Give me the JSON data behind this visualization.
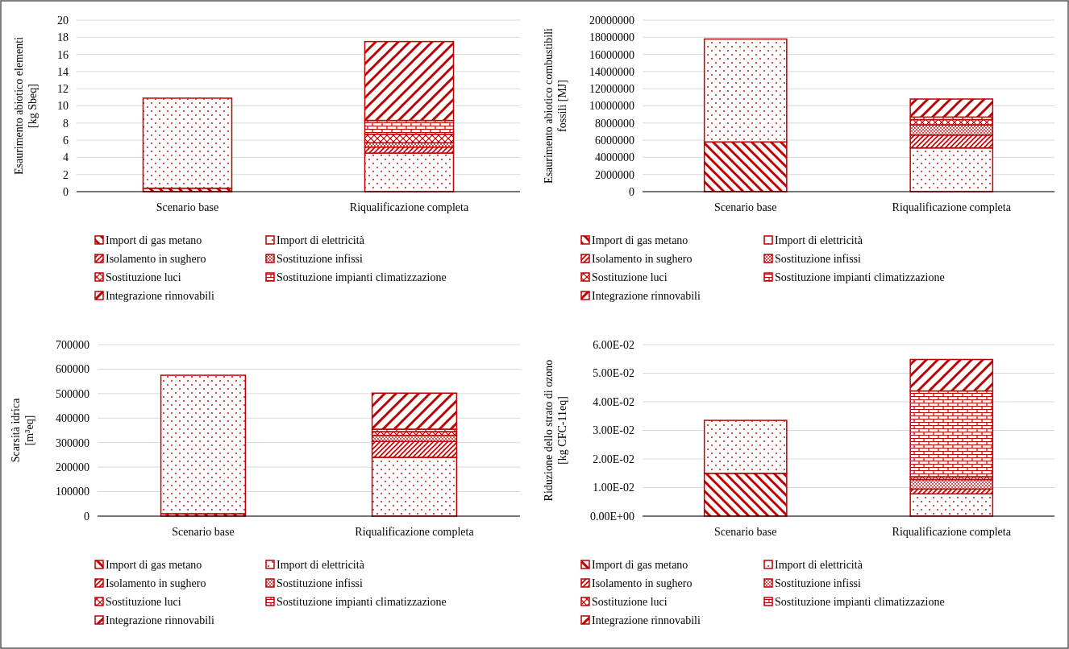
{
  "chart_data": [
    {
      "type": "bar",
      "stacked": true,
      "ylabel": "Esaurimento abiotico elementi\n[kg Sbeq]",
      "categories": [
        "Scenario base",
        "Riqualificazione completa"
      ],
      "ylim": [
        0,
        20
      ],
      "yticks": [
        0,
        2,
        4,
        6,
        8,
        10,
        12,
        14,
        16,
        18,
        20
      ],
      "grid": "y",
      "legend": "bottom",
      "series": [
        {
          "name": "Import di gas metano",
          "color": "#c00000",
          "values": [
            0.4,
            0
          ]
        },
        {
          "name": "Import di elettricità",
          "color": "#c00000",
          "values": [
            10.5,
            4.5
          ]
        },
        {
          "name": "Isolamento in sughero",
          "color": "#c00000",
          "values": [
            0,
            0.7
          ]
        },
        {
          "name": "Sostituzione infissi",
          "color": "#c00000",
          "values": [
            0,
            0.5
          ]
        },
        {
          "name": "Sostituzione luci",
          "color": "#c00000",
          "values": [
            0,
            1.0
          ]
        },
        {
          "name": "Sostituzione impianti climatizzazione",
          "color": "#c00000",
          "values": [
            0,
            1.6
          ]
        },
        {
          "name": "Integrazione rinnovabili",
          "color": "#c00000",
          "values": [
            0,
            9.2
          ]
        }
      ]
    },
    {
      "type": "bar",
      "stacked": true,
      "ylabel": "Esaurimento abiotico combustibili\nfossili [MJ]",
      "categories": [
        "Scenario base",
        "Riqualificazione completa"
      ],
      "ylim": [
        0,
        20000000
      ],
      "yticks": [
        0,
        2000000,
        4000000,
        6000000,
        8000000,
        10000000,
        12000000,
        14000000,
        16000000,
        18000000,
        20000000
      ],
      "grid": "y",
      "legend": "bottom",
      "series": [
        {
          "name": "Import di gas metano",
          "color": "#c00000",
          "values": [
            5800000,
            0
          ]
        },
        {
          "name": "Import di elettricità",
          "color": "#c00000",
          "values": [
            12000000,
            5100000
          ]
        },
        {
          "name": "Isolamento in sughero",
          "color": "#c00000",
          "values": [
            0,
            1500000
          ]
        },
        {
          "name": "Sostituzione infissi",
          "color": "#c00000",
          "values": [
            0,
            1200000
          ]
        },
        {
          "name": "Sostituzione luci",
          "color": "#c00000",
          "values": [
            0,
            600000
          ]
        },
        {
          "name": "Sostituzione impianti climatizzazione",
          "color": "#c00000",
          "values": [
            0,
            300000
          ]
        },
        {
          "name": "Integrazione rinnovabili",
          "color": "#c00000",
          "values": [
            0,
            2100000
          ]
        }
      ]
    },
    {
      "type": "bar",
      "stacked": true,
      "ylabel": "Scarsità idrica\n[m³eq]",
      "categories": [
        "Scenario base",
        "Riqualificazione completa"
      ],
      "ylim": [
        0,
        700000
      ],
      "yticks": [
        0,
        100000,
        200000,
        300000,
        400000,
        500000,
        600000,
        700000
      ],
      "grid": "y",
      "legend": "bottom",
      "series": [
        {
          "name": "Import di gas metano",
          "color": "#c00000",
          "values": [
            10000,
            0
          ]
        },
        {
          "name": "Import di elettricità",
          "color": "#c00000",
          "values": [
            565000,
            240000
          ]
        },
        {
          "name": "Isolamento in sughero",
          "color": "#c00000",
          "values": [
            0,
            65000
          ]
        },
        {
          "name": "Sostituzione infissi",
          "color": "#c00000",
          "values": [
            0,
            25000
          ]
        },
        {
          "name": "Sostituzione luci",
          "color": "#c00000",
          "values": [
            0,
            15000
          ]
        },
        {
          "name": "Sostituzione impianti climatizzazione",
          "color": "#c00000",
          "values": [
            0,
            10000
          ]
        },
        {
          "name": "Integrazione rinnovabili",
          "color": "#c00000",
          "values": [
            0,
            147000
          ]
        }
      ]
    },
    {
      "type": "bar",
      "stacked": true,
      "ylabel": "Riduzione dello strato di ozono\n[kg CFC-11eq]",
      "categories": [
        "Scenario base",
        "Riqualificazione completa"
      ],
      "ylim": [
        0,
        0.06
      ],
      "yticks": [
        {
          "value": 0,
          "label": "0.00E+00"
        },
        {
          "value": 0.01,
          "label": "1.00E-02"
        },
        {
          "value": 0.02,
          "label": "2.00E-02"
        },
        {
          "value": 0.03,
          "label": "3.00E-02"
        },
        {
          "value": 0.04,
          "label": "4.00E-02"
        },
        {
          "value": 0.05,
          "label": "5.00E-02"
        },
        {
          "value": 0.06,
          "label": "6.00E-02"
        }
      ],
      "grid": "y",
      "legend": "bottom",
      "series": [
        {
          "name": "Import di gas metano",
          "color": "#c00000",
          "values": [
            0.015,
            0
          ]
        },
        {
          "name": "Import di elettricità",
          "color": "#c00000",
          "values": [
            0.0185,
            0.0078
          ]
        },
        {
          "name": "Isolamento in sughero",
          "color": "#c00000",
          "values": [
            0,
            0.0017
          ]
        },
        {
          "name": "Sostituzione infissi",
          "color": "#c00000",
          "values": [
            0,
            0.0033
          ]
        },
        {
          "name": "Sostituzione luci",
          "color": "#c00000",
          "values": [
            0,
            0.001
          ]
        },
        {
          "name": "Sostituzione impianti climatizzazione",
          "color": "#c00000",
          "values": [
            0,
            0.03
          ]
        },
        {
          "name": "Integrazione rinnovabili",
          "color": "#c00000",
          "values": [
            0,
            0.011
          ]
        }
      ]
    }
  ]
}
